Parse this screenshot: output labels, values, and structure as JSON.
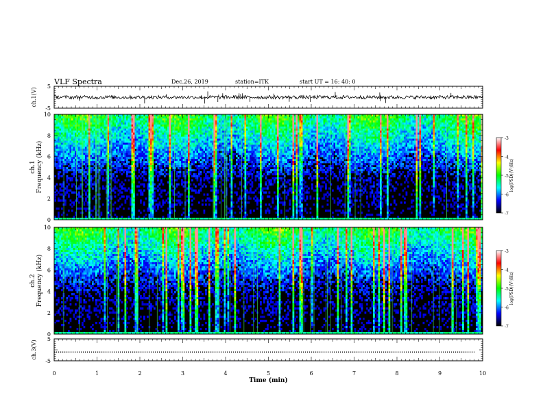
{
  "header": {
    "title": "VLF Spectra",
    "date": "Dec.26, 2019",
    "station": "station=ITK",
    "start": "start  UT  =   16: 40: 0"
  },
  "chart_data": [
    {
      "type": "line",
      "title": "",
      "ylabel": "ch.1(V)",
      "ylim": [
        -5,
        5
      ],
      "yticks": [
        "5",
        "-5"
      ],
      "series": [
        {
          "values_description_level": 0,
          "color": "#000000"
        }
      ],
      "x": [
        0,
        10
      ]
    },
    {
      "type": "heatmap",
      "ylabel": "ch.1\nFrequency (kHz)",
      "ylabel_line1": "ch.1",
      "ylabel_line2": "Frequency (kHz)",
      "ylim": [
        0,
        10
      ],
      "yticks": [
        "0",
        "2",
        "4",
        "6",
        "8",
        "10"
      ],
      "colorbar": {
        "label": "log(PSD)(V²/Hz)",
        "ticks": [
          "-3",
          "-4",
          "-5",
          "-6",
          "-7"
        ],
        "range": [
          -7,
          -3
        ],
        "colors": [
          "#000000",
          "#0000ff",
          "#00ffff",
          "#00ff00",
          "#ffff00",
          "#ff0000",
          "#ffffff"
        ]
      }
    },
    {
      "type": "heatmap",
      "ylabel": "ch.2\nFrequency (kHz)",
      "ylabel_line1": "ch.2",
      "ylabel_line2": "Frequency (kHz)",
      "ylim": [
        0,
        10
      ],
      "yticks": [
        "0",
        "2",
        "4",
        "6",
        "8",
        "10"
      ],
      "colorbar": {
        "label": "log(PSD)(V²/Hz)",
        "ticks": [
          "-3",
          "-4",
          "-5",
          "-6",
          "-7"
        ],
        "range": [
          -7,
          -3
        ],
        "colors": [
          "#000000",
          "#0000ff",
          "#00ffff",
          "#00ff00",
          "#ffff00",
          "#ff0000",
          "#ffffff"
        ]
      }
    },
    {
      "type": "line",
      "ylabel": "ch.3(V)",
      "ylim": [
        -5,
        5
      ],
      "yticks": [
        "5",
        "-5"
      ],
      "series": [
        {
          "values_description_level": -1,
          "color": "#000000"
        }
      ]
    }
  ],
  "xaxis": {
    "label": "Time  (min)",
    "range": [
      0,
      10
    ],
    "ticks": [
      "0",
      "1",
      "2",
      "3",
      "4",
      "5",
      "6",
      "7",
      "8",
      "9",
      "10"
    ]
  }
}
